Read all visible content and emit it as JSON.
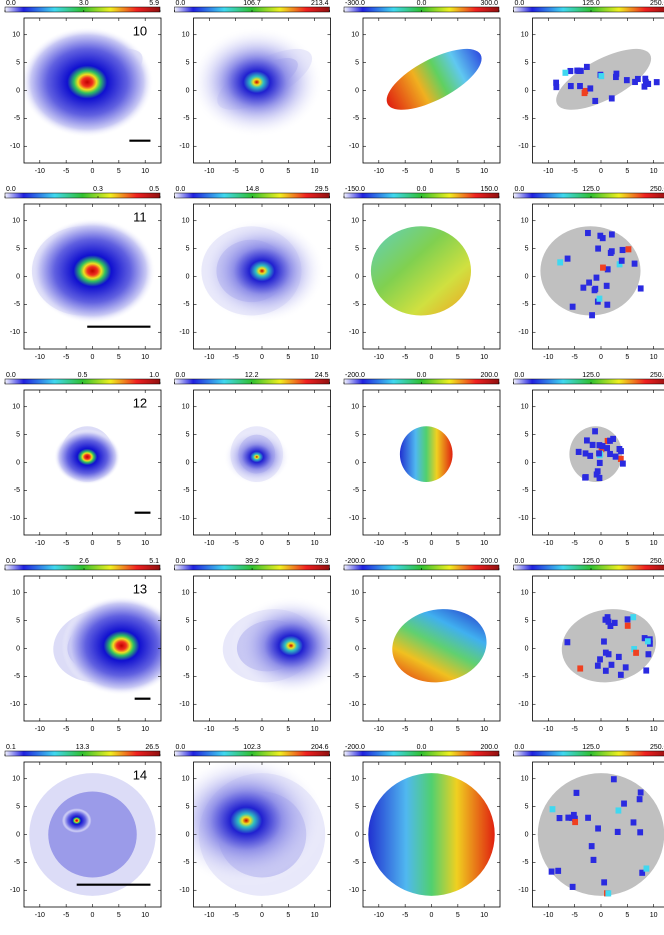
{
  "chart_data": [
    {
      "type": "heatmap",
      "label": "10",
      "cbar_ticks": [
        {
          "value": 0,
          "label": "0.0"
        },
        {
          "value": 3,
          "label": "3.0"
        },
        5.9
      ],
      "xlim": [
        -13,
        13
      ],
      "ylim": [
        -13,
        13
      ],
      "xticks": [
        -10,
        -5,
        0,
        5,
        10
      ],
      "yticks": [
        -10,
        -5,
        0,
        5,
        10
      ]
    },
    {
      "type": "heatmap",
      "cbar_ticks": [
        {
          "value": 0,
          "label": "0.0"
        },
        106.7,
        213.4
      ],
      "xlim": [
        -13,
        13
      ],
      "ylim": [
        -13,
        13
      ],
      "xticks": [
        -10,
        -5,
        0,
        5,
        10
      ],
      "yticks": [
        -10,
        -5,
        0,
        5,
        10
      ]
    },
    {
      "type": "heatmap",
      "cbar_ticks": [
        {
          "value": -300,
          "label": "-300.0"
        },
        {
          "value": 0,
          "label": "0.0"
        },
        {
          "value": 300,
          "label": "300.0"
        }
      ],
      "xlim": [
        -13,
        13
      ],
      "ylim": [
        -13,
        13
      ],
      "xticks": [
        -10,
        -5,
        0,
        5,
        10
      ],
      "yticks": [
        -10,
        -5,
        0,
        5,
        10
      ]
    },
    {
      "type": "heatmap",
      "cbar_ticks": [
        {
          "value": 0,
          "label": "0.0"
        },
        {
          "value": 125,
          "label": "125.0"
        },
        {
          "value": 250,
          "label": "250.0"
        }
      ],
      "xlim": [
        -13,
        13
      ],
      "ylim": [
        -13,
        13
      ],
      "xticks": [
        -10,
        -5,
        0,
        5,
        10
      ],
      "yticks": [
        -10,
        -5,
        0,
        5,
        10
      ]
    },
    {
      "type": "heatmap",
      "label": "11",
      "cbar_ticks": [
        {
          "value": 0,
          "label": "0.0"
        },
        0.3,
        0.5
      ],
      "xlim": [
        -13,
        13
      ],
      "ylim": [
        -13,
        13
      ],
      "xticks": [
        -10,
        -5,
        0,
        5,
        10
      ],
      "yticks": [
        -10,
        -5,
        0,
        5,
        10
      ]
    },
    {
      "type": "heatmap",
      "cbar_ticks": [
        {
          "value": 0,
          "label": "0.0"
        },
        14.8,
        29.5
      ],
      "xlim": [
        -13,
        13
      ],
      "ylim": [
        -13,
        13
      ],
      "xticks": [
        -10,
        -5,
        0,
        5,
        10
      ],
      "yticks": [
        -10,
        -5,
        0,
        5,
        10
      ]
    },
    {
      "type": "heatmap",
      "cbar_ticks": [
        {
          "value": -150,
          "label": "-150.0"
        },
        {
          "value": 0,
          "label": "0.0"
        },
        {
          "value": 150,
          "label": "150.0"
        }
      ],
      "xlim": [
        -13,
        13
      ],
      "ylim": [
        -13,
        13
      ],
      "xticks": [
        -10,
        -5,
        0,
        5,
        10
      ],
      "yticks": [
        -10,
        -5,
        0,
        5,
        10
      ]
    },
    {
      "type": "heatmap",
      "cbar_ticks": [
        {
          "value": 0,
          "label": "0.0"
        },
        {
          "value": 125,
          "label": "125.0"
        },
        {
          "value": 250,
          "label": "250.0"
        }
      ],
      "xlim": [
        -13,
        13
      ],
      "ylim": [
        -13,
        13
      ],
      "xticks": [
        -10,
        -5,
        0,
        5,
        10
      ],
      "yticks": [
        -10,
        -5,
        0,
        5,
        10
      ]
    },
    {
      "type": "heatmap",
      "label": "12",
      "cbar_ticks": [
        {
          "value": 0,
          "label": "0.0"
        },
        0.5,
        {
          "value": 1,
          "label": "1.0"
        }
      ],
      "xlim": [
        -13,
        13
      ],
      "ylim": [
        -13,
        13
      ],
      "xticks": [
        -10,
        -5,
        0,
        5,
        10
      ],
      "yticks": [
        -10,
        -5,
        0,
        5,
        10
      ]
    },
    {
      "type": "heatmap",
      "cbar_ticks": [
        {
          "value": 0,
          "label": "0.0"
        },
        12.2,
        24.5
      ],
      "xlim": [
        -13,
        13
      ],
      "ylim": [
        -13,
        13
      ],
      "xticks": [
        -10,
        -5,
        0,
        5,
        10
      ],
      "yticks": [
        -10,
        -5,
        0,
        5,
        10
      ]
    },
    {
      "type": "heatmap",
      "cbar_ticks": [
        {
          "value": -200,
          "label": "-200.0"
        },
        {
          "value": 0,
          "label": "0.0"
        },
        {
          "value": 200,
          "label": "200.0"
        }
      ],
      "xlim": [
        -13,
        13
      ],
      "ylim": [
        -13,
        13
      ],
      "xticks": [
        -10,
        -5,
        0,
        5,
        10
      ],
      "yticks": [
        -10,
        -5,
        0,
        5,
        10
      ]
    },
    {
      "type": "heatmap",
      "cbar_ticks": [
        {
          "value": 0,
          "label": "0.0"
        },
        {
          "value": 125,
          "label": "125.0"
        },
        {
          "value": 250,
          "label": "250.0"
        }
      ],
      "xlim": [
        -13,
        13
      ],
      "ylim": [
        -13,
        13
      ],
      "xticks": [
        -10,
        -5,
        0,
        5,
        10
      ],
      "yticks": [
        -10,
        -5,
        0,
        5,
        10
      ]
    },
    {
      "type": "heatmap",
      "label": "13",
      "cbar_ticks": [
        {
          "value": 0,
          "label": "0.0"
        },
        2.6,
        5.1
      ],
      "xlim": [
        -13,
        13
      ],
      "ylim": [
        -13,
        13
      ],
      "xticks": [
        -10,
        -5,
        0,
        5,
        10
      ],
      "yticks": [
        -10,
        -5,
        0,
        5,
        10
      ]
    },
    {
      "type": "heatmap",
      "cbar_ticks": [
        {
          "value": 0,
          "label": "0.0"
        },
        39.2,
        78.3
      ],
      "xlim": [
        -13,
        13
      ],
      "ylim": [
        -13,
        13
      ],
      "xticks": [
        -10,
        -5,
        0,
        5,
        10
      ],
      "yticks": [
        -10,
        -5,
        0,
        5,
        10
      ]
    },
    {
      "type": "heatmap",
      "cbar_ticks": [
        {
          "value": -200,
          "label": "-200.0"
        },
        {
          "value": 0,
          "label": "0.0"
        },
        {
          "value": 200,
          "label": "200.0"
        }
      ],
      "xlim": [
        -13,
        13
      ],
      "ylim": [
        -13,
        13
      ],
      "xticks": [
        -10,
        -5,
        0,
        5,
        10
      ],
      "yticks": [
        -10,
        -5,
        0,
        5,
        10
      ]
    },
    {
      "type": "heatmap",
      "cbar_ticks": [
        {
          "value": 0,
          "label": "0.0"
        },
        {
          "value": 125,
          "label": "125.0"
        },
        {
          "value": 250,
          "label": "250.0"
        }
      ],
      "xlim": [
        -13,
        13
      ],
      "ylim": [
        -13,
        13
      ],
      "xticks": [
        -10,
        -5,
        0,
        5,
        10
      ],
      "yticks": [
        -10,
        -5,
        0,
        5,
        10
      ]
    },
    {
      "type": "heatmap",
      "label": "14",
      "cbar_ticks": [
        0.1,
        13.3,
        26.5
      ],
      "xlim": [
        -13,
        13
      ],
      "ylim": [
        -13,
        13
      ],
      "xticks": [
        -10,
        -5,
        0,
        5,
        10
      ],
      "yticks": [
        -10,
        -5,
        0,
        5,
        10
      ]
    },
    {
      "type": "heatmap",
      "cbar_ticks": [
        {
          "value": 0,
          "label": "0.0"
        },
        102.3,
        204.6
      ],
      "xlim": [
        -13,
        13
      ],
      "ylim": [
        -13,
        13
      ],
      "xticks": [
        -10,
        -5,
        0,
        5,
        10
      ],
      "yticks": [
        -10,
        -5,
        0,
        5,
        10
      ]
    },
    {
      "type": "heatmap",
      "cbar_ticks": [
        {
          "value": -200,
          "label": "-200.0"
        },
        {
          "value": 0,
          "label": "0.0"
        },
        {
          "value": 200,
          "label": "200.0"
        }
      ],
      "xlim": [
        -13,
        13
      ],
      "ylim": [
        -13,
        13
      ],
      "xticks": [
        -10,
        -5,
        0,
        5,
        10
      ],
      "yticks": [
        -10,
        -5,
        0,
        5,
        10
      ]
    },
    {
      "type": "heatmap",
      "cbar_ticks": [
        {
          "value": 0,
          "label": "0.0"
        },
        {
          "value": 125,
          "label": "125.0"
        },
        {
          "value": 250,
          "label": "250.0"
        }
      ],
      "xlim": [
        -13,
        13
      ],
      "ylim": [
        -13,
        13
      ],
      "xticks": [
        -10,
        -5,
        0,
        5,
        10
      ],
      "yticks": [
        -10,
        -5,
        0,
        5,
        10
      ]
    }
  ]
}
